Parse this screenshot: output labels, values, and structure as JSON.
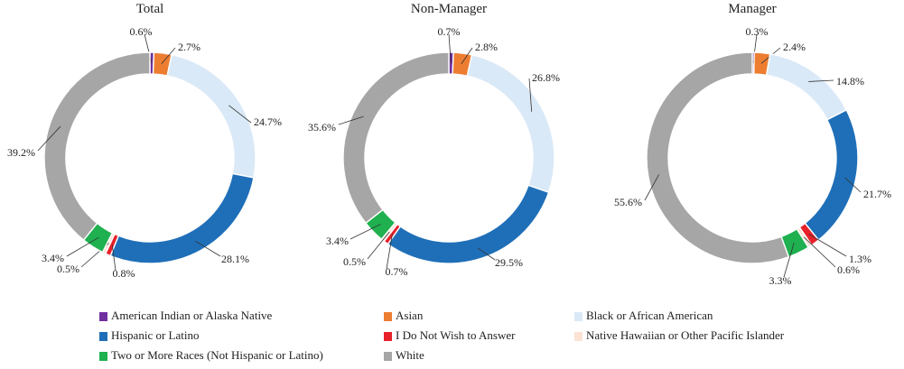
{
  "chart_data": [
    {
      "type": "pie",
      "title": "Total",
      "categories": [
        "American Indian or Alaska Native",
        "Asian",
        "Black or African American",
        "Hispanic or Latino",
        "I Do Not Wish to Answer",
        "Native Hawaiian or Other Pacific Islander",
        "Two or More Races (Not Hispanic or Latino)",
        "White"
      ],
      "values": [
        0.6,
        2.7,
        24.7,
        28.1,
        0.8,
        0.5,
        3.4,
        39.2
      ],
      "labels": [
        "0.6%",
        "2.7%",
        "24.7%",
        "28.1%",
        "0.8%",
        "0.5%",
        "3.4%",
        "39.2%"
      ]
    },
    {
      "type": "pie",
      "title": "Non-Manager",
      "categories": [
        "American Indian or Alaska Native",
        "Asian",
        "Black or African American",
        "Hispanic or Latino",
        "I Do Not Wish to Answer",
        "Native Hawaiian or Other Pacific Islander",
        "Two or More Races (Not Hispanic or Latino)",
        "White"
      ],
      "values": [
        0.7,
        2.8,
        26.8,
        29.5,
        0.7,
        0.5,
        3.4,
        35.6
      ],
      "labels": [
        "0.7%",
        "2.8%",
        "26.8%",
        "29.5%",
        "0.7%",
        "0.5%",
        "3.4%",
        "35.6%"
      ]
    },
    {
      "type": "pie",
      "title": "Manager",
      "categories": [
        "American Indian or Alaska Native",
        "Asian",
        "Black or African American",
        "Hispanic or Latino",
        "I Do Not Wish to Answer",
        "Native Hawaiian or Other Pacific Islander",
        "Two or More Races (Not Hispanic or Latino)",
        "White"
      ],
      "values": [
        0.3,
        2.4,
        14.8,
        21.7,
        1.3,
        0.6,
        3.3,
        55.6
      ],
      "labels": [
        "0.3%",
        "2.4%",
        "14.8%",
        "21.7%",
        "1.3%",
        "0.6%",
        "3.3%",
        "55.6%"
      ]
    }
  ],
  "legend": [
    {
      "label": "American Indian or Alaska Native",
      "color": "#7030a0"
    },
    {
      "label": "Asian",
      "color": "#ed7d31"
    },
    {
      "label": "Black or African American",
      "color": "#dae9f7"
    },
    {
      "label": "Hispanic or Latino",
      "color": "#1f6fb8"
    },
    {
      "label": "I Do Not Wish to Answer",
      "color": "#e8202a"
    },
    {
      "label": "Native Hawaiian or Other Pacific Islander",
      "color": "#fbe2d5"
    },
    {
      "label": "Two or More Races (Not Hispanic or Latino)",
      "color": "#1fb050"
    },
    {
      "label": "White",
      "color": "#a6a6a6"
    }
  ]
}
